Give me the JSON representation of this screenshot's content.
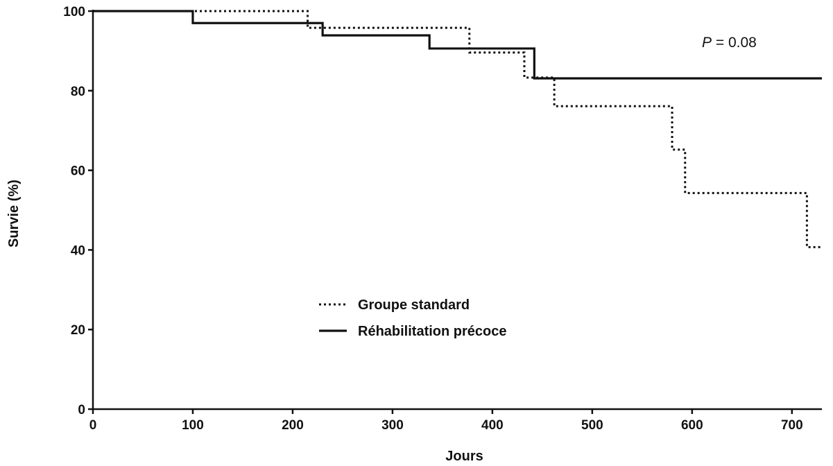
{
  "chart_data": {
    "type": "line",
    "step": true,
    "xlabel": "Jours",
    "ylabel": "Survie (%)",
    "xlim": [
      0,
      730
    ],
    "ylim": [
      0,
      100
    ],
    "xticks": [
      0,
      100,
      200,
      300,
      400,
      500,
      600,
      700
    ],
    "yticks": [
      0,
      20,
      40,
      60,
      80,
      100
    ],
    "grid": false,
    "legend_position": "center",
    "annotation": {
      "italic": "P",
      "rest": " = 0.08"
    },
    "series": [
      {
        "name": "Groupe standard",
        "style": "dotted",
        "color": "#111111",
        "x": [
          0,
          215,
          377,
          432,
          462,
          580,
          593,
          715,
          730
        ],
        "y": [
          100,
          95.8,
          89.6,
          83.3,
          76.1,
          65.2,
          54.3,
          40.7,
          40.7
        ]
      },
      {
        "name": "Réhabilitation précoce",
        "style": "solid",
        "color": "#111111",
        "x": [
          0,
          100,
          230,
          337,
          442,
          730
        ],
        "y": [
          100,
          97,
          93.9,
          90.6,
          83.1,
          83.1
        ]
      }
    ]
  }
}
